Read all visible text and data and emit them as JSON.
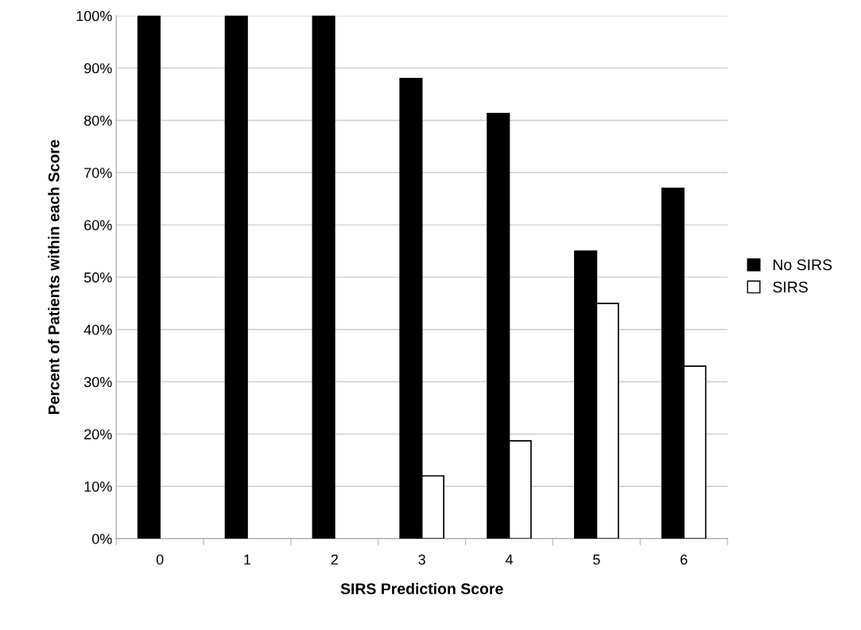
{
  "chart_data": {
    "type": "bar",
    "xlabel": "SIRS Prediction Score",
    "ylabel": "Percent of Patients within each Score",
    "categories": [
      "0",
      "1",
      "2",
      "3",
      "4",
      "5",
      "6"
    ],
    "series": [
      {
        "name": "No SIRS",
        "color": "#000000",
        "values": [
          100,
          100,
          100,
          88,
          81.3,
          55,
          67
        ]
      },
      {
        "name": "SIRS",
        "color": "#ffffff",
        "values": [
          null,
          null,
          null,
          12,
          18.7,
          45,
          33
        ]
      }
    ],
    "ylim": [
      0,
      100
    ],
    "yticks": [
      {
        "value": 0,
        "label": "0%"
      },
      {
        "value": 10,
        "label": "10%"
      },
      {
        "value": 20,
        "label": "20%"
      },
      {
        "value": 30,
        "label": "30%"
      },
      {
        "value": 40,
        "label": "40%"
      },
      {
        "value": 50,
        "label": "50%"
      },
      {
        "value": 60,
        "label": "60%"
      },
      {
        "value": 70,
        "label": "70%"
      },
      {
        "value": 80,
        "label": "80%"
      },
      {
        "value": 90,
        "label": "90%"
      },
      {
        "value": 100,
        "label": "100%"
      }
    ],
    "grid": "y",
    "legend": "right"
  }
}
